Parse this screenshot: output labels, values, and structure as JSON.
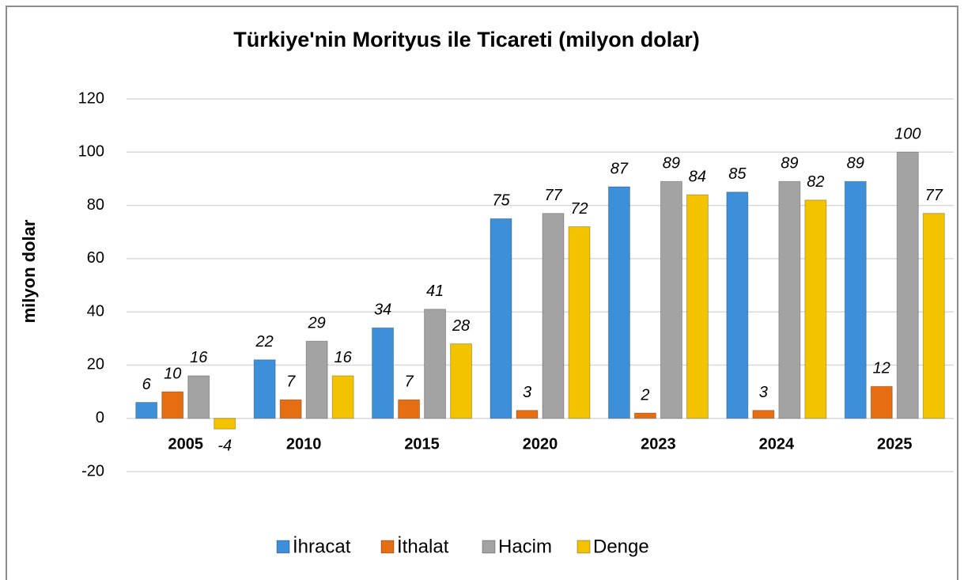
{
  "chart_data": {
    "type": "bar",
    "title": "Türkiye'nin Morityus ile Ticareti (milyon dolar)",
    "y_label": "milyon dolar",
    "categories": [
      "2005",
      "2010",
      "2015",
      "2020",
      "2023",
      "2024",
      "2025"
    ],
    "series": [
      {
        "name": "İhracat",
        "color": "#3d8fd9",
        "values": [
          6,
          22,
          34,
          75,
          87,
          85,
          89
        ]
      },
      {
        "name": "İthalat",
        "color": "#e56d12",
        "values": [
          10,
          7,
          7,
          3,
          2,
          3,
          12
        ]
      },
      {
        "name": "Hacim",
        "color": "#a3a3a3",
        "values": [
          16,
          29,
          41,
          77,
          89,
          89,
          100
        ]
      },
      {
        "name": "Denge",
        "color": "#f4c300",
        "values": [
          -4,
          16,
          28,
          72,
          84,
          82,
          77
        ]
      }
    ],
    "ylim": [
      -20,
      120
    ],
    "yticks": [
      -20,
      0,
      20,
      40,
      60,
      80,
      100,
      120
    ],
    "grid": true,
    "legend": "bottom"
  }
}
